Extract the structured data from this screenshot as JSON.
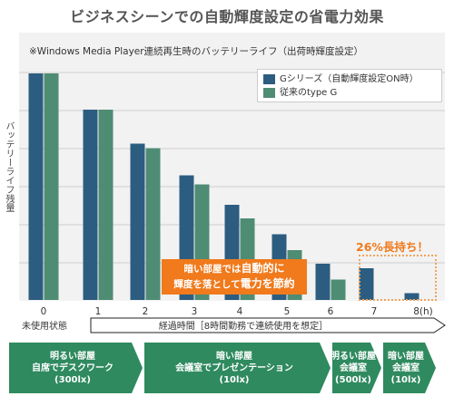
{
  "title": "ビジネスシーンでの自動輝度設定の省電力効果",
  "note": "※Windows Media Player連続再生時のバッテリーライフ（出荷時輝度設定）",
  "ylabel": "バッテリーライフ残量",
  "callout": {
    "line1_pre": "暗い部屋では",
    "line1_em": "自動的に",
    "line2_pre": "輝度を落として",
    "line2_em": "電力を節約"
  },
  "badge": "26%長持ち！",
  "axis": {
    "start_label": "未使用状態",
    "middle_label": "経過時間［8時間勤務で連続使用を想定］"
  },
  "scenes": [
    {
      "line1": "明るい部屋",
      "line2": "自席でデスクワーク",
      "line3": "(300lx)"
    },
    {
      "line1": "暗い部屋",
      "line2": "会議室でプレゼンテーション",
      "line3": "(10lx)"
    },
    {
      "line1": "明るい部屋",
      "line2": "会議室",
      "line3": "(500lx)"
    },
    {
      "line1": "暗い部屋",
      "line2": "会議室",
      "line3": "(10lx)"
    }
  ],
  "colors": {
    "series1": "#2c5d80",
    "series2": "#4f8c74",
    "arrow": "#2f8a5f",
    "callout": "#f07a1c"
  },
  "chart_data": {
    "type": "bar",
    "title": "ビジネスシーンでの自動輝度設定の省電力効果",
    "xlabel": "経過時間［8時間勤務で連続使用を想定］",
    "ylabel": "バッテリーライフ残量",
    "categories": [
      "0",
      "1",
      "2",
      "3",
      "4",
      "5",
      "6",
      "7",
      "8(h)"
    ],
    "ylim": [
      0,
      100
    ],
    "grid": true,
    "legend": "top-right",
    "series": [
      {
        "name": "Gシリーズ（自動輝度設定ON時）",
        "values": [
          100,
          84,
          69,
          55,
          42,
          29,
          16,
          14,
          3
        ]
      },
      {
        "name": "従来のtype G",
        "values": [
          100,
          84,
          67,
          51,
          36,
          22,
          9,
          0,
          0
        ]
      }
    ]
  }
}
